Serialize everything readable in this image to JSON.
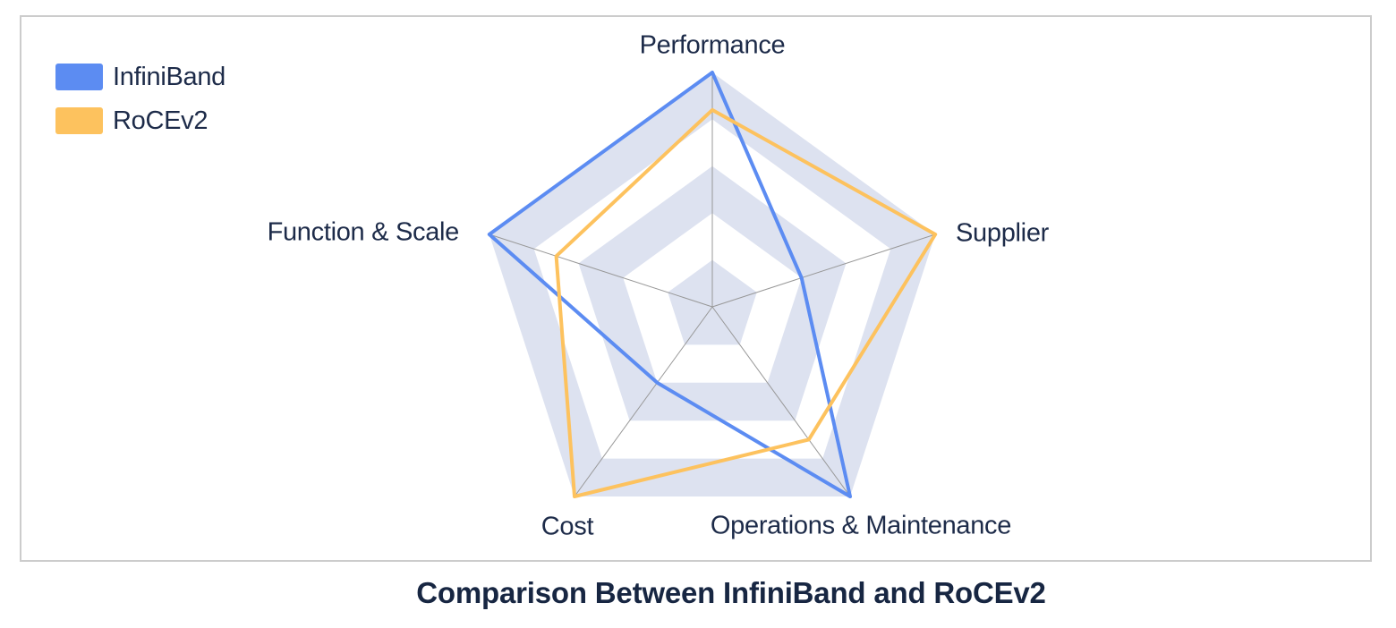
{
  "chart_data": {
    "type": "radar",
    "title": "Comparison Between InfiniBand and RoCEv2",
    "axes": [
      "Performance",
      "Supplier",
      "Operations & Maintenance",
      "Cost",
      "Function & Scale"
    ],
    "max": 5,
    "rings": 5,
    "legend_position": "top-left",
    "series": [
      {
        "name": "InfiniBand",
        "color": "#5c8cf2",
        "values": [
          5,
          2,
          5,
          2,
          5
        ]
      },
      {
        "name": "RoCEv2",
        "color": "#fdc25e",
        "values": [
          4.2,
          5,
          3.5,
          5,
          3.5
        ]
      }
    ],
    "grid": {
      "band_colors": [
        "#dde2f0",
        "#ffffff"
      ],
      "axis_line_color": "#989898",
      "line_width": 4
    }
  },
  "legend": {
    "items": [
      {
        "label": "InfiniBand",
        "color": "#5c8cf2"
      },
      {
        "label": "RoCEv2",
        "color": "#fdc25e"
      }
    ]
  }
}
